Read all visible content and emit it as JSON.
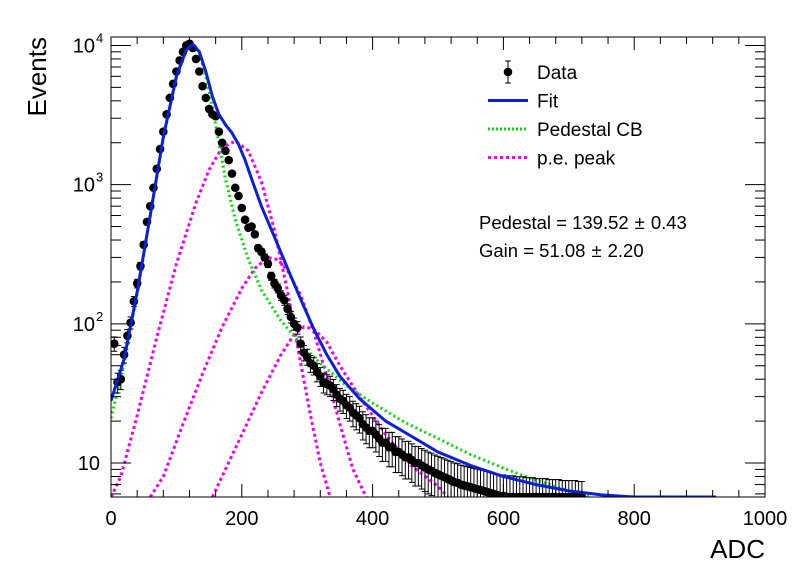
{
  "chart_data": {
    "type": "scatter",
    "title": "",
    "xlabel": "ADC",
    "ylabel": "Events",
    "xlim": [
      0,
      1000
    ],
    "ylim": [
      5.7,
      11500
    ],
    "yscale": "log",
    "x_ticks": [
      0,
      200,
      400,
      600,
      800,
      1000
    ],
    "y_ticks": [
      {
        "value": 10,
        "base": "10",
        "exp": ""
      },
      {
        "value": 100,
        "base": "10",
        "exp": "2"
      },
      {
        "value": 1000,
        "base": "10",
        "exp": "3"
      },
      {
        "value": 10000,
        "base": "10",
        "exp": "4"
      }
    ],
    "legend_position": "top-right",
    "legend": [
      {
        "label": "Data",
        "kind": "marker",
        "color": "#000000"
      },
      {
        "label": "Fit",
        "kind": "line",
        "color": "#0a1fd6"
      },
      {
        "label": "Pedestal CB",
        "kind": "dotted",
        "color": "#00dd00"
      },
      {
        "label": "p.e. peak",
        "kind": "dashed",
        "color": "#ee00ee"
      }
    ],
    "annotations": [
      {
        "text": "Pedestal = 139.52",
        "pm": "0.43"
      },
      {
        "text": "Gain = 51.08",
        "pm": "2.20"
      }
    ],
    "series": [
      {
        "name": "Data",
        "kind": "points",
        "color": "#000000",
        "points": [
          [
            5,
            72
          ],
          [
            10,
            38
          ],
          [
            15,
            40
          ],
          [
            20,
            60
          ],
          [
            25,
            82
          ],
          [
            30,
            102
          ],
          [
            35,
            145
          ],
          [
            40,
            195
          ],
          [
            45,
            260
          ],
          [
            50,
            370
          ],
          [
            55,
            540
          ],
          [
            60,
            700
          ],
          [
            65,
            950
          ],
          [
            70,
            1300
          ],
          [
            75,
            1800
          ],
          [
            80,
            2400
          ],
          [
            85,
            3200
          ],
          [
            90,
            4200
          ],
          [
            95,
            5300
          ],
          [
            100,
            6500
          ],
          [
            105,
            7800
          ],
          [
            110,
            9000
          ],
          [
            115,
            10000
          ],
          [
            120,
            10300
          ],
          [
            125,
            9600
          ],
          [
            130,
            8000
          ],
          [
            135,
            6500
          ],
          [
            140,
            5100
          ],
          [
            145,
            4200
          ],
          [
            150,
            3500
          ],
          [
            155,
            3200
          ],
          [
            160,
            3100
          ],
          [
            165,
            2400
          ],
          [
            170,
            2000
          ],
          [
            175,
            1750
          ],
          [
            180,
            1500
          ],
          [
            185,
            1200
          ],
          [
            190,
            950
          ],
          [
            195,
            830
          ],
          [
            200,
            680
          ],
          [
            205,
            560
          ],
          [
            210,
            490
          ],
          [
            215,
            500
          ],
          [
            220,
            440
          ],
          [
            225,
            350
          ],
          [
            230,
            330
          ],
          [
            235,
            300
          ],
          [
            240,
            270
          ],
          [
            245,
            220
          ],
          [
            250,
            195
          ],
          [
            255,
            180
          ],
          [
            260,
            160
          ],
          [
            265,
            148
          ],
          [
            270,
            128
          ],
          [
            275,
            112
          ],
          [
            280,
            100
          ],
          [
            285,
            94
          ],
          [
            290,
            72
          ],
          [
            295,
            62
          ],
          [
            300,
            58
          ],
          [
            305,
            52
          ],
          [
            310,
            50
          ],
          [
            315,
            45
          ],
          [
            320,
            42
          ],
          [
            325,
            38
          ],
          [
            330,
            37
          ],
          [
            335,
            36
          ],
          [
            340,
            34
          ],
          [
            345,
            31
          ],
          [
            350,
            29
          ],
          [
            355,
            28
          ],
          [
            360,
            26
          ],
          [
            365,
            25
          ],
          [
            370,
            23
          ],
          [
            375,
            22
          ],
          [
            380,
            21
          ],
          [
            385,
            19
          ],
          [
            390,
            18
          ],
          [
            395,
            17
          ],
          [
            400,
            17
          ],
          [
            405,
            16
          ],
          [
            410,
            15
          ],
          [
            415,
            14
          ],
          [
            420,
            14
          ],
          [
            425,
            13
          ],
          [
            430,
            13
          ],
          [
            435,
            12
          ],
          [
            440,
            12
          ],
          [
            445,
            11.5
          ],
          [
            450,
            11
          ],
          [
            455,
            11
          ],
          [
            460,
            10.5
          ],
          [
            465,
            10
          ],
          [
            470,
            10
          ],
          [
            475,
            9.6
          ],
          [
            480,
            9.3
          ],
          [
            485,
            9
          ],
          [
            490,
            8.8
          ],
          [
            495,
            8.5
          ],
          [
            500,
            8.3
          ],
          [
            505,
            8.1
          ],
          [
            510,
            7.9
          ],
          [
            515,
            7.7
          ],
          [
            520,
            7.5
          ],
          [
            525,
            7.3
          ],
          [
            530,
            7.2
          ],
          [
            535,
            7
          ],
          [
            540,
            6.9
          ],
          [
            545,
            6.8
          ],
          [
            550,
            6.7
          ],
          [
            555,
            6.6
          ],
          [
            560,
            6.5
          ],
          [
            565,
            6.4
          ],
          [
            570,
            6.3
          ],
          [
            575,
            6.2
          ],
          [
            580,
            6.1
          ],
          [
            585,
            6
          ],
          [
            590,
            5.9
          ],
          [
            595,
            5.8
          ],
          [
            600,
            5.8
          ],
          [
            605,
            5.7
          ],
          [
            610,
            5.7
          ],
          [
            615,
            5.7
          ],
          [
            620,
            5.6
          ],
          [
            625,
            5.6
          ],
          [
            630,
            5.6
          ],
          [
            635,
            5.5
          ],
          [
            640,
            5.5
          ],
          [
            645,
            5.5
          ],
          [
            650,
            5.4
          ],
          [
            655,
            5.4
          ],
          [
            660,
            5.4
          ],
          [
            665,
            5.4
          ],
          [
            670,
            5.3
          ],
          [
            675,
            5.3
          ],
          [
            680,
            5.3
          ],
          [
            685,
            5.3
          ],
          [
            690,
            5.2
          ],
          [
            695,
            5.2
          ],
          [
            700,
            5.2
          ],
          [
            705,
            5.2
          ],
          [
            710,
            5.2
          ],
          [
            715,
            5.1
          ],
          [
            720,
            5.1
          ]
        ]
      },
      {
        "name": "Fit",
        "kind": "line",
        "color": "#0a1fd6",
        "points": [
          [
            0,
            28
          ],
          [
            20,
            56
          ],
          [
            40,
            170
          ],
          [
            60,
            600
          ],
          [
            80,
            2200
          ],
          [
            100,
            6000
          ],
          [
            115,
            9300
          ],
          [
            125,
            10200
          ],
          [
            135,
            9000
          ],
          [
            145,
            6500
          ],
          [
            155,
            4300
          ],
          [
            165,
            3200
          ],
          [
            175,
            2700
          ],
          [
            185,
            2350
          ],
          [
            195,
            1950
          ],
          [
            205,
            1500
          ],
          [
            215,
            1100
          ],
          [
            230,
            700
          ],
          [
            250,
            420
          ],
          [
            270,
            250
          ],
          [
            290,
            150
          ],
          [
            310,
            92
          ],
          [
            330,
            60
          ],
          [
            350,
            42
          ],
          [
            380,
            29
          ],
          [
            420,
            20
          ],
          [
            460,
            15.5
          ],
          [
            500,
            12
          ],
          [
            550,
            9.6
          ],
          [
            600,
            8
          ],
          [
            650,
            7
          ],
          [
            700,
            6.3
          ],
          [
            750,
            5.9
          ],
          [
            800,
            5.7
          ],
          [
            850,
            5.6
          ],
          [
            900,
            5.5
          ],
          [
            925,
            5.4
          ]
        ]
      },
      {
        "name": "Pedestal CB",
        "kind": "dotted",
        "color": "#00dd00",
        "points": [
          [
            0,
            21
          ],
          [
            20,
            52
          ],
          [
            40,
            165
          ],
          [
            60,
            590
          ],
          [
            80,
            2150
          ],
          [
            100,
            5900
          ],
          [
            115,
            9100
          ],
          [
            125,
            10100
          ],
          [
            135,
            8800
          ],
          [
            145,
            6000
          ],
          [
            155,
            3600
          ],
          [
            165,
            2000
          ],
          [
            175,
            1100
          ],
          [
            190,
            560
          ],
          [
            210,
            290
          ],
          [
            230,
            175
          ],
          [
            260,
            105
          ],
          [
            290,
            72
          ],
          [
            320,
            52
          ],
          [
            360,
            36
          ],
          [
            400,
            27
          ],
          [
            450,
            19.5
          ],
          [
            500,
            15
          ],
          [
            550,
            11.5
          ],
          [
            600,
            9.2
          ],
          [
            650,
            7.5
          ],
          [
            700,
            6.3
          ],
          [
            735,
            5.7
          ]
        ]
      },
      {
        "name": "p.e. peak",
        "kind": "dashed",
        "color": "#ee00ee",
        "curves": [
          [
            [
              0,
              5.7
            ],
            [
              15,
              8
            ],
            [
              40,
              22
            ],
            [
              70,
              80
            ],
            [
              100,
              270
            ],
            [
              130,
              740
            ],
            [
              150,
              1280
            ],
            [
              170,
              1850
            ],
            [
              190,
              2050
            ],
            [
              210,
              1750
            ],
            [
              230,
              1050
            ],
            [
              250,
              470
            ],
            [
              270,
              170
            ],
            [
              290,
              52
            ],
            [
              305,
              22
            ],
            [
              320,
              10
            ],
            [
              335,
              5.7
            ]
          ],
          [
            [
              60,
              5.7
            ],
            [
              80,
              8
            ],
            [
              110,
              19
            ],
            [
              140,
              44
            ],
            [
              170,
              95
            ],
            [
              200,
              180
            ],
            [
              220,
              250
            ],
            [
              240,
              300
            ],
            [
              255,
              290
            ],
            [
              270,
              240
            ],
            [
              290,
              160
            ],
            [
              310,
              88
            ],
            [
              330,
              42
            ],
            [
              350,
              19
            ],
            [
              370,
              9
            ],
            [
              390,
              5.7
            ]
          ],
          [
            [
              155,
              5.7
            ],
            [
              175,
              9
            ],
            [
              200,
              16
            ],
            [
              230,
              32
            ],
            [
              260,
              60
            ],
            [
              280,
              84
            ],
            [
              295,
              95
            ],
            [
              310,
              92
            ],
            [
              330,
              74
            ],
            [
              350,
              50
            ],
            [
              380,
              30
            ],
            [
              420,
              16
            ],
            [
              460,
              9.5
            ],
            [
              500,
              6.8
            ],
            [
              515,
              5.7
            ]
          ]
        ]
      }
    ]
  }
}
